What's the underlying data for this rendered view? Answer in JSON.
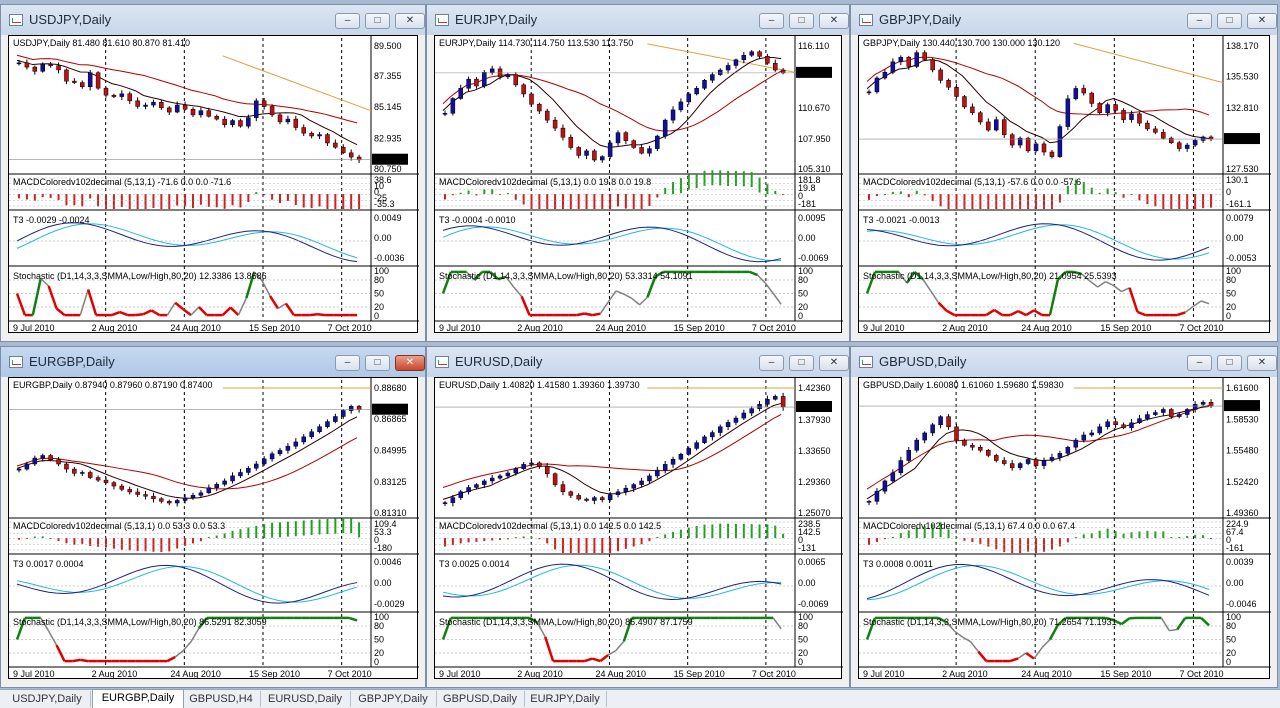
{
  "windows": [
    {
      "title": "USDJPY,Daily",
      "active": false,
      "main_header": "USDJPY,Daily  81.480 81.610 80.870 81.410",
      "price_ticks": [
        "89.500",
        "87.355",
        "85.145",
        "82.935",
        "80.750"
      ],
      "current_price": "81.410",
      "macd_label": "MACDColoredv102decimal (5,13,1) -71.6 0.0 0.0 -71.6",
      "macd_ticks": [
        "38.6",
        "10",
        "0",
        "-25",
        "-35.3"
      ],
      "t3_label": "T3 -0.0029 -0.0024",
      "t3_ticks": [
        "0.0049",
        "0.00",
        "-0.0036"
      ],
      "stoch_label": "Stochastic (D1,14,3,3,SMMA,Low/High,80,20) 12.3386 13.8686",
      "stoch_ticks": [
        "100",
        "80",
        "50",
        "20",
        "0"
      ],
      "dates": [
        "9 Jul 2010",
        "2 Aug 2010",
        "24 Aug 2010",
        "15 Sep 2010",
        "7 Oct 2010"
      ],
      "price_series": [
        88.3,
        88.0,
        87.7,
        88.2,
        88.1,
        87.8,
        87.0,
        86.9,
        86.6,
        87.6,
        86.5,
        86.0,
        85.9,
        86.1,
        85.6,
        85.2,
        85.3,
        85.5,
        85.1,
        84.8,
        85.3,
        85.0,
        84.6,
        84.9,
        84.5,
        84.3,
        83.9,
        84.2,
        83.8,
        84.4,
        85.6,
        85.2,
        84.6,
        84.1,
        84.3,
        83.7,
        83.3,
        83.1,
        83.2,
        82.6,
        82.3,
        81.9,
        81.6,
        81.4
      ],
      "trend_from": 88.8,
      "trend_to": 84.9,
      "ma1_shift": 0.6,
      "ma2_shift": 0.9
    },
    {
      "title": "EURJPY,Daily",
      "active": false,
      "main_header": "EURJPY,Daily  114.730 114.750 113.530 113.750",
      "price_ticks": [
        "116.110",
        "113.750",
        "110.670",
        "107.950",
        "105.310"
      ],
      "current_price": "113.750",
      "macd_label": "MACDColoredv102decimal (5,13,1) 0.0 19.8 0.0 19.8",
      "macd_ticks": [
        "181.8",
        "19.8",
        "0",
        "-181"
      ],
      "t3_label": "T3 -0.0004 -0.0010",
      "t3_ticks": [
        "0.0095",
        "0.00",
        "-0.0069"
      ],
      "stoch_label": "Stochastic (D1,14,3,3,SMMA,Low/High,80,20) 53.3314 54.1091",
      "stoch_ticks": [
        "100",
        "80",
        "50",
        "20",
        "0"
      ],
      "dates": [
        "9 Jul 2010",
        "2 Aug 2010",
        "24 Aug 2010",
        "15 Sep 2010",
        "7 Oct 2010"
      ],
      "price_series": [
        110.2,
        111.5,
        112.4,
        113.2,
        112.6,
        113.8,
        114.1,
        113.4,
        113.6,
        112.7,
        111.9,
        111.0,
        110.4,
        109.6,
        108.9,
        108.1,
        107.2,
        106.5,
        106.9,
        106.1,
        106.4,
        107.6,
        108.5,
        107.8,
        107.2,
        106.7,
        107.1,
        108.2,
        109.6,
        110.5,
        111.2,
        111.9,
        112.4,
        113.1,
        113.6,
        114.0,
        114.4,
        114.9,
        115.3,
        115.6,
        115.2,
        114.6,
        114.0,
        113.75
      ],
      "trend_from": 116.3,
      "trend_to": 113.8,
      "ma1_shift": 0.8,
      "ma2_shift": 1.4
    },
    {
      "title": "GBPJPY,Daily",
      "active": false,
      "main_header": "GBPJPY,Daily  130.440 130.700 130.000 130.120",
      "price_ticks": [
        "138.170",
        "135.530",
        "132.810",
        "130.120",
        "127.530"
      ],
      "current_price": "130.120",
      "macd_label": "MACDColoredv102decimal (5,13,1) -57.6 0.0 0.0 -57.6",
      "macd_ticks": [
        "130.1",
        "0",
        "-161.1"
      ],
      "t3_label": "T3 -0.0021 -0.0013",
      "t3_ticks": [
        "0.0079",
        "0.00",
        "-0.0053"
      ],
      "stoch_label": "Stochastic (D1,14,3,3,SMMA,Low/High,80,20) 21.0954 25.5393",
      "stoch_ticks": [
        "100",
        "80",
        "50",
        "20",
        "0"
      ],
      "dates": [
        "9 Jul 2010",
        "2 Aug 2010",
        "24 Aug 2010",
        "15 Sep 2010",
        "7 Oct 2010"
      ],
      "price_series": [
        134.2,
        135.4,
        135.9,
        136.8,
        137.2,
        136.4,
        137.6,
        137.0,
        136.1,
        135.2,
        134.6,
        133.8,
        132.9,
        132.4,
        131.6,
        130.9,
        131.8,
        130.5,
        129.6,
        130.2,
        129.1,
        129.7,
        129.0,
        128.6,
        131.2,
        133.6,
        134.5,
        134.1,
        133.2,
        132.4,
        133.1,
        132.6,
        131.8,
        132.3,
        131.5,
        131.0,
        130.7,
        130.2,
        129.8,
        129.3,
        129.6,
        130.0,
        130.3,
        130.12
      ],
      "trend_from": 138.4,
      "trend_to": 135.0,
      "ma1_shift": 0.9,
      "ma2_shift": 1.5
    },
    {
      "title": "EURGBP,Daily",
      "active": true,
      "main_header": "EURGBP,Daily  0.87940 0.87960 0.87190 0.87400",
      "price_ticks": [
        "0.88680",
        "0.87400",
        "0.86865",
        "0.84995",
        "0.83125",
        "0.81310"
      ],
      "current_price": "0.87400",
      "macd_label": "MACDColoredv102decimal (5,13,1) 0.0 53.3 0.0 53.3",
      "macd_ticks": [
        "109.4",
        "53.3",
        "0",
        "-180"
      ],
      "t3_label": "T3 0.0017 0.0004",
      "t3_ticks": [
        "0.0046",
        "0.00",
        "-0.0029"
      ],
      "stoch_label": "Stochastic (D1,14,3,3,SMMA,Low/High,80,20) 86.5291 82.3059",
      "stoch_ticks": [
        "100",
        "80",
        "50",
        "20",
        "0"
      ],
      "dates": [
        "9 Jul 2010",
        "2 Aug 2010",
        "24 Aug 2010",
        "15 Sep 2010",
        "7 Oct 2010"
      ],
      "price_series": [
        0.839,
        0.842,
        0.8455,
        0.847,
        0.8445,
        0.842,
        0.839,
        0.8365,
        0.837,
        0.834,
        0.8325,
        0.831,
        0.829,
        0.827,
        0.8255,
        0.824,
        0.823,
        0.8215,
        0.82,
        0.819,
        0.8205,
        0.822,
        0.8235,
        0.825,
        0.828,
        0.83,
        0.832,
        0.835,
        0.837,
        0.8395,
        0.842,
        0.845,
        0.848,
        0.85,
        0.8525,
        0.855,
        0.858,
        0.861,
        0.864,
        0.867,
        0.87,
        0.8735,
        0.876,
        0.874
      ],
      "trend_from": 0.8868,
      "trend_to": 0.8868,
      "ma1_shift": 0.0015,
      "ma2_shift": 0.003
    },
    {
      "title": "EURUSD,Daily",
      "active": false,
      "main_header": "EURUSD,Daily  1.40820 1.41580 1.39360 1.39730",
      "price_ticks": [
        "1.42360",
        "1.39730",
        "1.37930",
        "1.33650",
        "1.29360",
        "1.25070"
      ],
      "current_price": "1.39730",
      "macd_label": "MACDColoredv102decimal (5,13,1) 0.0 142.5 0.0 142.5",
      "macd_ticks": [
        "238.5",
        "142.5",
        "0",
        "-131"
      ],
      "t3_label": "T3 0.0025 0.0014",
      "t3_ticks": [
        "0.0065",
        "0.00",
        "-0.0069"
      ],
      "stoch_label": "Stochastic (D1,14,3,3,SMMA,Low/High,80,20) 86.4907 87.1759",
      "stoch_ticks": [
        "100",
        "80",
        "50",
        "20",
        "0"
      ],
      "dates": [
        "9 Jul 2010",
        "2 Aug 2010",
        "24 Aug 2010",
        "15 Sep 2010",
        "7 Oct 2010"
      ],
      "price_series": [
        1.265,
        1.272,
        1.28,
        1.286,
        1.29,
        1.295,
        1.299,
        1.302,
        1.306,
        1.312,
        1.318,
        1.32,
        1.315,
        1.305,
        1.29,
        1.28,
        1.275,
        1.27,
        1.268,
        1.272,
        1.269,
        1.276,
        1.28,
        1.285,
        1.29,
        1.295,
        1.302,
        1.31,
        1.318,
        1.325,
        1.332,
        1.34,
        1.348,
        1.356,
        1.362,
        1.37,
        1.376,
        1.382,
        1.389,
        1.395,
        1.401,
        1.408,
        1.412,
        1.3973
      ],
      "trend_from": 1.4236,
      "trend_to": 1.4236,
      "ma1_shift": 0.015,
      "ma2_shift": 0.035
    },
    {
      "title": "GBPUSD,Daily",
      "active": false,
      "main_header": "GBPUSD,Daily  1.60080 1.61060 1.59680 1.59830",
      "price_ticks": [
        "1.61600",
        "1.59830",
        "1.58530",
        "1.55480",
        "1.52420",
        "1.49360"
      ],
      "current_price": "1.59830",
      "macd_label": "MACDColoredv102decimal (5,13,1) 67.4 0.0 0.0 67.4",
      "macd_ticks": [
        "224.9",
        "67.4",
        "0",
        "-161"
      ],
      "t3_label": "T3 0.0008 0.0011",
      "t3_ticks": [
        "0.0039",
        "0.00",
        "-0.0046"
      ],
      "stoch_label": "Stochastic (D1,14,3,3,SMMA,Low/High,80,20) 71.2654 71.1931",
      "stoch_ticks": [
        "100",
        "80",
        "50",
        "20",
        "0"
      ],
      "dates": [
        "9 Jul 2010",
        "2 Aug 2010",
        "24 Aug 2010",
        "15 Sep 2010",
        "7 Oct 2010"
      ],
      "price_series": [
        1.505,
        1.515,
        1.525,
        1.533,
        1.545,
        1.555,
        1.565,
        1.572,
        1.58,
        1.588,
        1.578,
        1.565,
        1.56,
        1.558,
        1.555,
        1.55,
        1.545,
        1.542,
        1.538,
        1.542,
        1.546,
        1.54,
        1.545,
        1.548,
        1.552,
        1.558,
        1.565,
        1.57,
        1.572,
        1.578,
        1.583,
        1.58,
        1.577,
        1.582,
        1.586,
        1.59,
        1.592,
        1.595,
        1.588,
        1.59,
        1.595,
        1.6,
        1.602,
        1.5983
      ],
      "trend_from": 1.616,
      "trend_to": 1.616,
      "ma1_shift": 0.008,
      "ma2_shift": 0.02
    }
  ],
  "tabs": [
    {
      "label": "USDJPY,Daily",
      "active": false
    },
    {
      "label": "EURGBP,Daily",
      "active": true
    },
    {
      "label": "GBPUSD,H4",
      "active": false
    },
    {
      "label": "EURUSD,Daily",
      "active": false
    },
    {
      "label": "GBPJPY,Daily",
      "active": false
    },
    {
      "label": "GBPUSD,Daily",
      "active": false
    },
    {
      "label": "EURJPY,Daily",
      "active": false
    }
  ],
  "colors": {
    "bull_candle": "#1010a0",
    "bear_candle": "#c01010",
    "ma_red": "#b00000",
    "ma_dark": "#2a0000",
    "trend_line": "#e0a040",
    "t3_dark": "#1a237e",
    "t3_light": "#22b8e6",
    "stoch_grey": "#808080",
    "stoch_green": "#108010",
    "stoch_red": "#e00000",
    "price_tag_bg": "#000000"
  }
}
